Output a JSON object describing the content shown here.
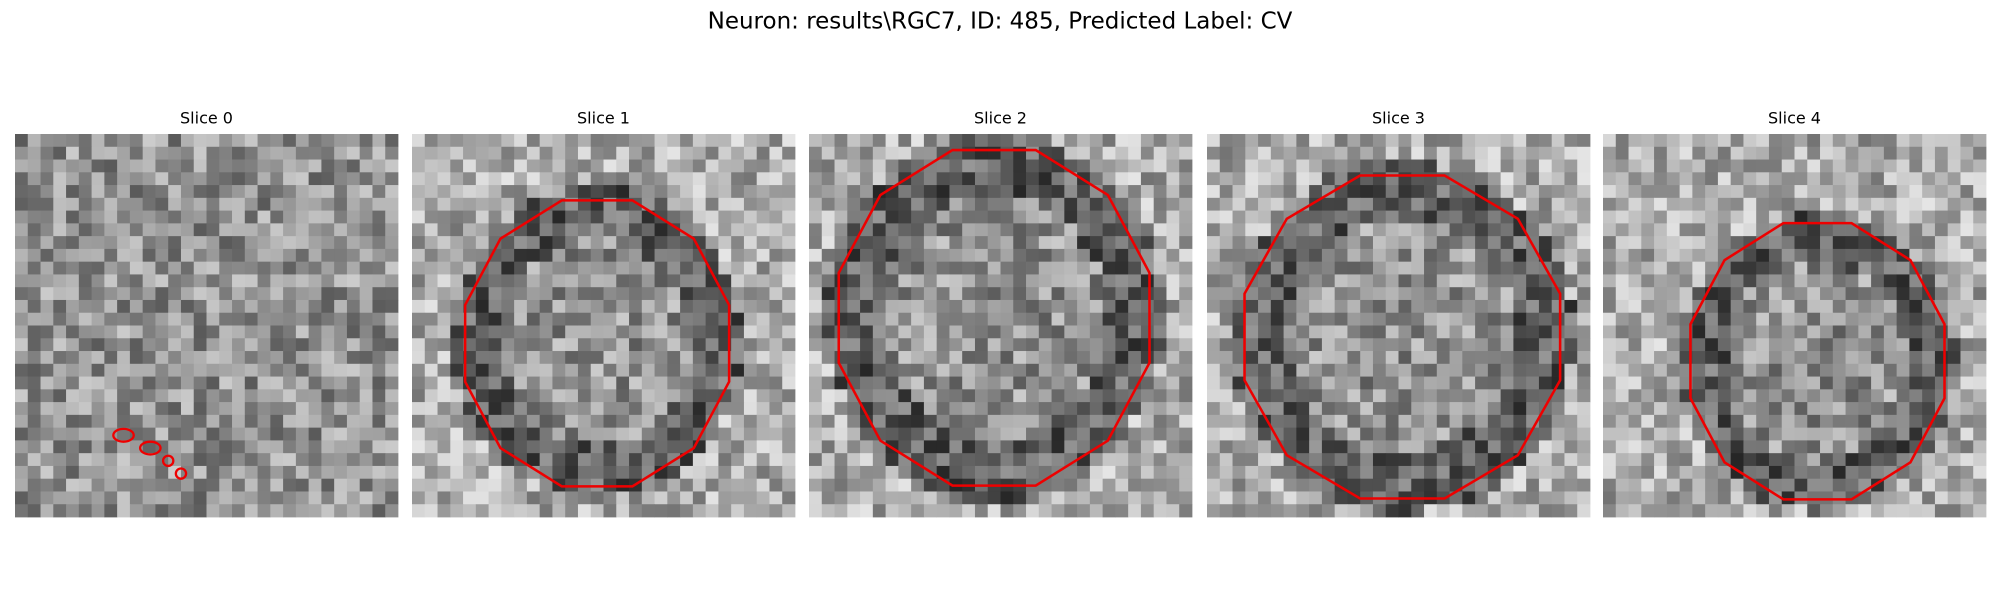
{
  "title": "Neuron: results\\RGC7, ID: 485, Predicted Label: CV",
  "panels": [
    {
      "title": "Slice 0"
    },
    {
      "title": "Slice 1"
    },
    {
      "title": "Slice 2"
    },
    {
      "title": "Slice 3"
    },
    {
      "title": "Slice 4"
    }
  ]
}
